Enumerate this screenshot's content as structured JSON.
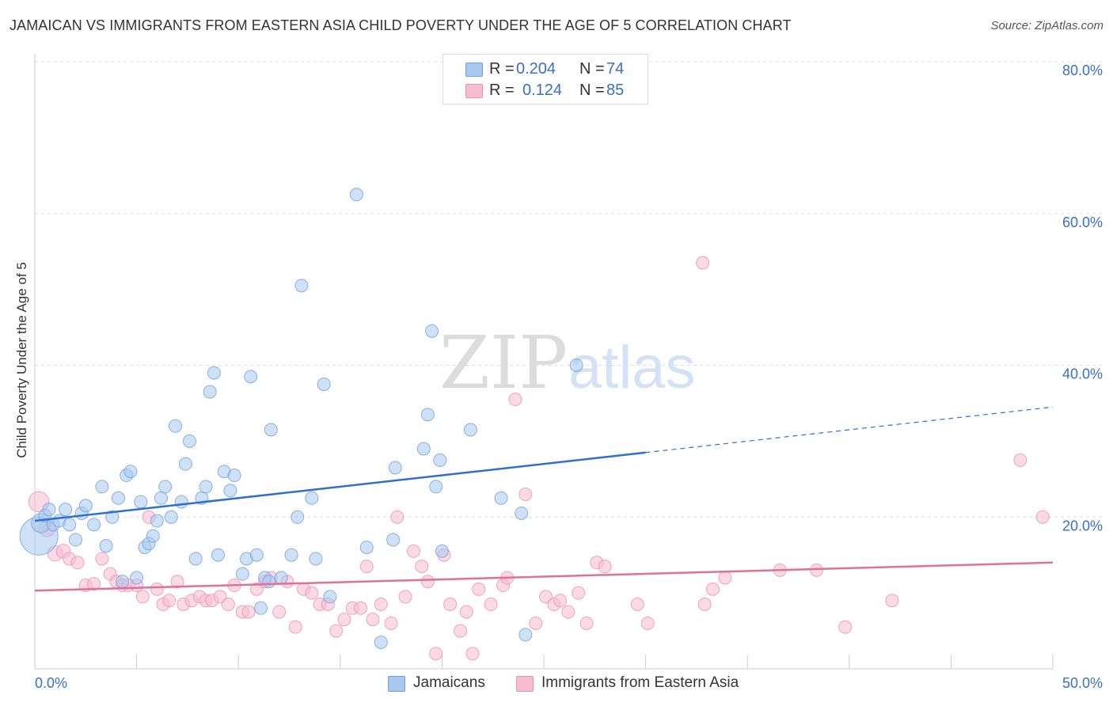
{
  "title": "JAMAICAN VS IMMIGRANTS FROM EASTERN ASIA CHILD POVERTY UNDER THE AGE OF 5 CORRELATION CHART",
  "source": "Source: ZipAtlas.com",
  "watermark": {
    "zip": "ZIP",
    "atlas": "atlas"
  },
  "colors": {
    "jamaicans_fill": "#a8c8f0",
    "jamaicans_stroke": "#6f9fdc",
    "jamaicans_line": "#2f6fd0",
    "eastasia_fill": "#f7bcd0",
    "eastasia_stroke": "#ec8fb0",
    "eastasia_line": "#e0709a",
    "axis_label": "#3b6fc4",
    "grid": "#dddddd"
  },
  "legend": {
    "rows": [
      {
        "r_label": "R =",
        "r_value": "0.204",
        "n_label": "N =",
        "n_value": "74"
      },
      {
        "r_label": "R =",
        "r_value": "0.124",
        "n_label": "N =",
        "n_value": "85"
      }
    ]
  },
  "bottom_legend": [
    "Jamaicans",
    "Immigrants from Eastern Asia"
  ],
  "chart_data": {
    "type": "scatter",
    "title": "JAMAICAN VS IMMIGRANTS FROM EASTERN ASIA CHILD POVERTY UNDER THE AGE OF 5 CORRELATION CHART",
    "xlabel": "",
    "ylabel": "Child Poverty Under the Age of 5",
    "xlim": [
      0,
      50
    ],
    "ylim": [
      0,
      80
    ],
    "x_tick_labels": [
      "0.0%",
      "50.0%"
    ],
    "y_tick_labels": [
      "20.0%",
      "40.0%",
      "60.0%",
      "80.0%"
    ],
    "y_ticks": [
      20,
      40,
      60,
      80
    ],
    "grid": true,
    "legend_position": "top-center",
    "series": [
      {
        "name": "Jamaicans",
        "r": 0.204,
        "n": 74,
        "trend": {
          "x_start": 0,
          "y_start": 19.5,
          "x_solid_end": 30,
          "y_solid_end": 28.5,
          "x_end": 50,
          "y_end": 34.5
        },
        "points": [
          [
            0.2,
            17.5,
            3
          ],
          [
            0.3,
            19.2,
            1.5
          ],
          [
            0.5,
            20.2,
            1
          ],
          [
            0.7,
            21.0,
            1
          ],
          [
            0.9,
            19.0,
            1
          ],
          [
            1.2,
            19.5,
            1
          ],
          [
            1.5,
            21.0,
            1
          ],
          [
            1.7,
            19.0,
            1
          ],
          [
            2.0,
            17.0,
            1
          ],
          [
            2.3,
            20.5,
            1
          ],
          [
            2.5,
            21.5,
            1
          ],
          [
            2.9,
            19.0,
            1
          ],
          [
            3.3,
            24.0,
            1
          ],
          [
            3.5,
            16.2,
            1
          ],
          [
            3.8,
            20.0,
            1
          ],
          [
            4.1,
            22.5,
            1
          ],
          [
            4.3,
            11.5,
            1
          ],
          [
            4.5,
            25.5,
            1
          ],
          [
            4.7,
            26.0,
            1
          ],
          [
            5.0,
            12.0,
            1
          ],
          [
            5.2,
            22.0,
            1
          ],
          [
            5.4,
            16.0,
            1
          ],
          [
            5.6,
            16.5,
            1
          ],
          [
            5.8,
            17.5,
            1
          ],
          [
            6.0,
            19.5,
            1
          ],
          [
            6.2,
            22.5,
            1
          ],
          [
            6.4,
            24.0,
            1
          ],
          [
            6.7,
            20.0,
            1
          ],
          [
            6.9,
            32.0,
            1
          ],
          [
            7.2,
            22.0,
            1
          ],
          [
            7.4,
            27.0,
            1
          ],
          [
            7.6,
            30.0,
            1
          ],
          [
            7.9,
            14.5,
            1
          ],
          [
            8.2,
            22.5,
            1
          ],
          [
            8.4,
            24.0,
            1
          ],
          [
            8.6,
            36.5,
            1
          ],
          [
            8.8,
            39.0,
            1
          ],
          [
            9.0,
            15.0,
            1
          ],
          [
            9.3,
            26.0,
            1
          ],
          [
            9.6,
            23.5,
            1
          ],
          [
            9.8,
            25.5,
            1
          ],
          [
            10.2,
            12.5,
            1
          ],
          [
            10.4,
            14.5,
            1
          ],
          [
            10.6,
            38.5,
            1
          ],
          [
            10.9,
            15.0,
            1
          ],
          [
            11.1,
            8.0,
            1
          ],
          [
            11.3,
            12.0,
            1
          ],
          [
            11.5,
            11.5,
            1
          ],
          [
            11.6,
            31.5,
            1
          ],
          [
            12.1,
            12.0,
            1
          ],
          [
            12.6,
            15.0,
            1
          ],
          [
            12.9,
            20.0,
            1
          ],
          [
            13.1,
            50.5,
            1
          ],
          [
            13.6,
            22.5,
            1
          ],
          [
            13.8,
            14.5,
            1
          ],
          [
            14.2,
            37.5,
            1
          ],
          [
            14.5,
            9.5,
            1
          ],
          [
            15.8,
            62.5,
            1
          ],
          [
            16.3,
            16.0,
            1
          ],
          [
            17.0,
            3.5,
            1
          ],
          [
            17.6,
            17.0,
            1
          ],
          [
            17.7,
            26.5,
            1
          ],
          [
            19.1,
            29.0,
            1
          ],
          [
            19.3,
            33.5,
            1
          ],
          [
            19.5,
            44.5,
            1
          ],
          [
            19.7,
            24.0,
            1
          ],
          [
            19.9,
            27.5,
            1
          ],
          [
            20.0,
            15.5,
            1
          ],
          [
            21.4,
            31.5,
            1
          ],
          [
            22.9,
            22.5,
            1
          ],
          [
            23.9,
            20.5,
            1
          ],
          [
            24.1,
            4.5,
            1
          ],
          [
            26.6,
            40.0,
            1
          ],
          [
            11.0,
            20.0,
            0
          ]
        ]
      },
      {
        "name": "Immigrants from Eastern Asia",
        "r": 0.124,
        "n": 85,
        "trend": {
          "x_start": 0,
          "y_start": 10.3,
          "x_end": 50,
          "y_end": 14.0
        },
        "points": [
          [
            0.2,
            22.0,
            1.6
          ],
          [
            0.6,
            18.5,
            1.3
          ],
          [
            1.0,
            15.2,
            1.2
          ],
          [
            1.4,
            15.5,
            1.1
          ],
          [
            1.7,
            14.5,
            1
          ],
          [
            2.1,
            14.0,
            1
          ],
          [
            2.5,
            11.0,
            1
          ],
          [
            2.9,
            11.2,
            1
          ],
          [
            3.3,
            14.5,
            1
          ],
          [
            3.7,
            12.5,
            1
          ],
          [
            4.0,
            11.5,
            1
          ],
          [
            4.3,
            11.0,
            1
          ],
          [
            4.6,
            11.0,
            1
          ],
          [
            5.0,
            11.0,
            1
          ],
          [
            5.3,
            9.5,
            1
          ],
          [
            5.6,
            20.0,
            1
          ],
          [
            6.0,
            10.5,
            1
          ],
          [
            6.3,
            8.5,
            1
          ],
          [
            6.6,
            9.0,
            1
          ],
          [
            7.0,
            11.5,
            1
          ],
          [
            7.3,
            8.5,
            1
          ],
          [
            7.7,
            9.0,
            1
          ],
          [
            8.1,
            9.5,
            1
          ],
          [
            8.4,
            9.0,
            1
          ],
          [
            8.7,
            9.0,
            1
          ],
          [
            9.1,
            9.5,
            1
          ],
          [
            9.5,
            8.5,
            1
          ],
          [
            9.8,
            11.0,
            1
          ],
          [
            10.2,
            7.5,
            1
          ],
          [
            10.5,
            7.5,
            1
          ],
          [
            10.9,
            10.5,
            1
          ],
          [
            11.3,
            11.5,
            1
          ],
          [
            11.6,
            12.0,
            1
          ],
          [
            12.0,
            7.5,
            1
          ],
          [
            12.4,
            11.5,
            1
          ],
          [
            12.8,
            5.5,
            1
          ],
          [
            13.2,
            10.5,
            1
          ],
          [
            13.6,
            10.0,
            1
          ],
          [
            14.0,
            8.5,
            1
          ],
          [
            14.4,
            8.5,
            1
          ],
          [
            14.8,
            5.0,
            1
          ],
          [
            15.2,
            6.5,
            1
          ],
          [
            15.6,
            8.0,
            1
          ],
          [
            16.0,
            8.0,
            1
          ],
          [
            16.3,
            13.5,
            1
          ],
          [
            16.6,
            6.5,
            1
          ],
          [
            17.0,
            8.5,
            1
          ],
          [
            17.5,
            6.0,
            1
          ],
          [
            17.8,
            20.0,
            1
          ],
          [
            18.2,
            9.5,
            1
          ],
          [
            18.6,
            15.5,
            1
          ],
          [
            19.0,
            13.5,
            1
          ],
          [
            19.3,
            11.5,
            1
          ],
          [
            19.7,
            2.0,
            1
          ],
          [
            20.1,
            15.0,
            1
          ],
          [
            20.4,
            8.5,
            1
          ],
          [
            20.9,
            5.0,
            1
          ],
          [
            21.2,
            7.5,
            1
          ],
          [
            21.5,
            2.0,
            1
          ],
          [
            21.8,
            10.5,
            1
          ],
          [
            22.4,
            8.5,
            1
          ],
          [
            23.0,
            11.0,
            1
          ],
          [
            23.2,
            12.0,
            1
          ],
          [
            23.6,
            35.5,
            1
          ],
          [
            24.1,
            23.0,
            1
          ],
          [
            24.6,
            6.0,
            1
          ],
          [
            25.1,
            9.5,
            1
          ],
          [
            25.5,
            8.5,
            1
          ],
          [
            25.8,
            9.0,
            1
          ],
          [
            26.2,
            7.5,
            1
          ],
          [
            26.7,
            10.0,
            1
          ],
          [
            27.1,
            6.0,
            1
          ],
          [
            27.6,
            14.0,
            1
          ],
          [
            28.0,
            13.5,
            1
          ],
          [
            29.6,
            8.5,
            1
          ],
          [
            30.1,
            6.0,
            1
          ],
          [
            32.8,
            53.5,
            1
          ],
          [
            32.9,
            8.5,
            1
          ],
          [
            33.3,
            10.5,
            1
          ],
          [
            33.9,
            12.0,
            1
          ],
          [
            36.6,
            13.0,
            1
          ],
          [
            38.4,
            13.0,
            1
          ],
          [
            39.8,
            5.5,
            1
          ],
          [
            42.1,
            9.0,
            1
          ],
          [
            48.4,
            27.5,
            1
          ],
          [
            49.5,
            20.0,
            1
          ]
        ]
      }
    ]
  }
}
